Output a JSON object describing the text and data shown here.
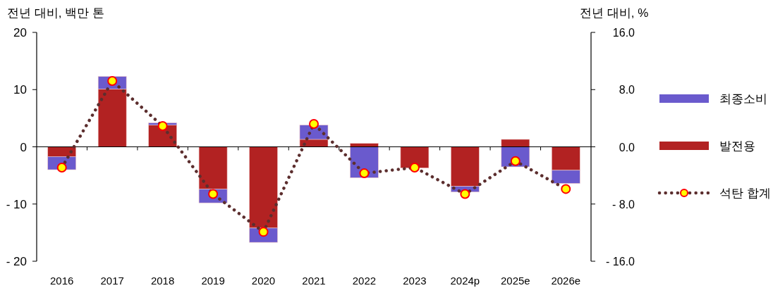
{
  "chart_data": {
    "type": "bar",
    "ylabel": "전년 대비, 백만 톤",
    "y2label": "전년 대비, %",
    "categories": [
      "2016",
      "2017",
      "2018",
      "2019",
      "2020",
      "2021",
      "2022",
      "2023",
      "2024p",
      "2025e",
      "2026e"
    ],
    "stacked": true,
    "series": [
      {
        "name": "발전용",
        "color": "#b22222",
        "values": [
          -1.7,
          10.1,
          3.8,
          -7.4,
          -14.2,
          1.3,
          0.6,
          -3.7,
          -6.9,
          1.3,
          -4.1
        ]
      },
      {
        "name": "최종소비",
        "color": "#6a5acd",
        "values": [
          -2.3,
          2.2,
          0.4,
          -2.4,
          -2.5,
          2.5,
          -5.4,
          0,
          -1.0,
          -3.5,
          -2.3
        ]
      },
      {
        "name": "석탄 합계",
        "type": "line",
        "axis": "y2",
        "color": "#5c2e2e",
        "marker": "circle",
        "line_style": "dotted",
        "values": [
          -2.9,
          9.2,
          2.9,
          -6.6,
          -11.9,
          3.2,
          -3.7,
          -2.9,
          -6.6,
          -2.0,
          -5.9
        ]
      }
    ],
    "ylim": [
      -20,
      20
    ],
    "yticks": [
      {
        "value": -20,
        "label": "- 20"
      },
      {
        "value": -10,
        "label": "- 10"
      },
      0,
      10,
      20
    ],
    "y2lim": [
      -16,
      16
    ],
    "y2ticks": [
      {
        "value": -16,
        "label": "- 16.0"
      },
      {
        "value": -8,
        "label": "- 8.0"
      },
      {
        "value": 0,
        "label": "0.0"
      },
      {
        "value": 8,
        "label": "8.0"
      },
      {
        "value": 16,
        "label": "16.0"
      }
    ],
    "legend": "right"
  }
}
